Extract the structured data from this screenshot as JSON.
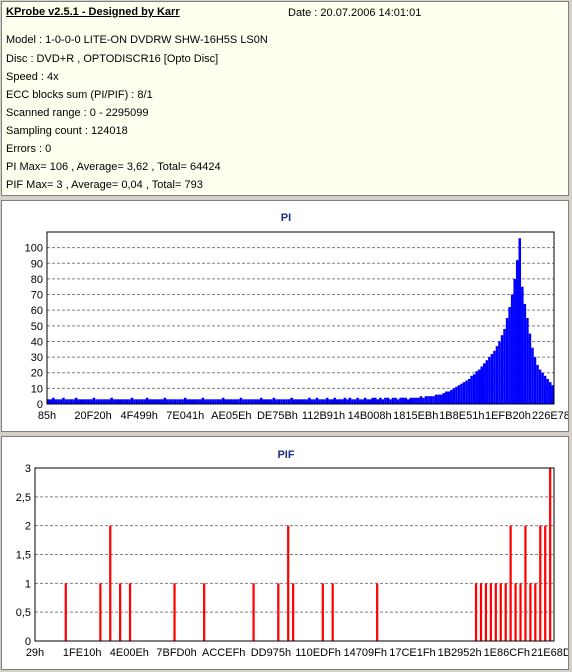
{
  "header": {
    "title": "KProbe v2.5.1 - Designed by Karr",
    "date": "Date : 20.07.2006 14:01:01",
    "lines": [
      "Model : 1-0-0-0 LITE-ON DVDRW SHW-16H5S  LS0N",
      "Disc : DVD+R , OPTODISCR16 [Opto Disc]",
      "Speed : 4x",
      "ECC blocks sum (PI/PIF) : 8/1",
      "Scanned range : 0 - 2295099",
      "Sampling count : 124018",
      "Errors : 0",
      "PI Max= 106 , Average= 3,62 , Total= 64424",
      "PIF Max= 3 , Average= 0,04 , Total= 793"
    ]
  },
  "colors": {
    "pi": "#0000ff",
    "pif": "#ff0000",
    "title": "#1c2f7e"
  },
  "chart_data": [
    {
      "type": "area",
      "title": "PI",
      "ylim": [
        0,
        110
      ],
      "yticks": [
        "0",
        "10",
        "20",
        "30",
        "40",
        "50",
        "60",
        "70",
        "80",
        "90",
        "100"
      ],
      "xticks": [
        "85h",
        "20F20h",
        "4F499h",
        "7E041h",
        "AE05Eh",
        "DE75Bh",
        "112B91h",
        "14B008h",
        "1815EBh",
        "1B8E51h",
        "1EFB20h",
        "226E78h"
      ],
      "series": [
        {
          "values": [
            3,
            3,
            4,
            3,
            3,
            3,
            4,
            3,
            3,
            3,
            3,
            4,
            3,
            3,
            3,
            3,
            3,
            3,
            4,
            3,
            3,
            3,
            3,
            3,
            3,
            4,
            3,
            3,
            3,
            3,
            3,
            3,
            3,
            4,
            3,
            3,
            3,
            3,
            3,
            4,
            3,
            3,
            3,
            3,
            3,
            3,
            4,
            3,
            3,
            3,
            3,
            3,
            3,
            3,
            4,
            3,
            3,
            3,
            3,
            3,
            3,
            4,
            3,
            3,
            3,
            3,
            3,
            3,
            3,
            4,
            3,
            3,
            3,
            3,
            3,
            3,
            4,
            3,
            3,
            3,
            3,
            3,
            3,
            3,
            4,
            3,
            3,
            3,
            3,
            4,
            3,
            3,
            3,
            3,
            3,
            3,
            4,
            3,
            3,
            3,
            3,
            3,
            3,
            4,
            3,
            3,
            4,
            3,
            3,
            3,
            4,
            3,
            3,
            4,
            3,
            3,
            3,
            4,
            3,
            4,
            3,
            3,
            4,
            3,
            3,
            4,
            3,
            3,
            4,
            4,
            3,
            4,
            3,
            4,
            4,
            3,
            4,
            4,
            3,
            4,
            4,
            4,
            3,
            4,
            4,
            4,
            4,
            5,
            4,
            5,
            5,
            5,
            5,
            6,
            6,
            6,
            7,
            8,
            8,
            9,
            10,
            11,
            12,
            13,
            14,
            15,
            16,
            18,
            19,
            21,
            22,
            24,
            26,
            28,
            30,
            32,
            34,
            37,
            40,
            44,
            48,
            55,
            62,
            70,
            80,
            92,
            106,
            75,
            64,
            55,
            45,
            36,
            30,
            25,
            22,
            20,
            18,
            16,
            14,
            12
          ]
        }
      ]
    },
    {
      "type": "bar",
      "title": "PIF",
      "ylim": [
        0,
        3
      ],
      "yticks": [
        "0",
        "0,5",
        "1",
        "1,5",
        "2",
        "2,5",
        "3"
      ],
      "xticks": [
        "29h",
        "1FE10h",
        "4E00Eh",
        "7BFD0h",
        "ACCEFh",
        "DD975h",
        "110EDFh",
        "14709Fh",
        "17CE1Fh",
        "1B2952h",
        "1E86CFh",
        "21E68Dh"
      ],
      "series": [
        {
          "values": [
            0,
            0,
            0,
            0,
            0,
            0,
            1,
            0,
            0,
            0,
            0,
            0,
            0,
            1,
            0,
            2,
            0,
            1,
            0,
            1,
            0,
            0,
            0,
            0,
            0,
            0,
            0,
            0,
            1,
            0,
            0,
            0,
            0,
            0,
            1,
            0,
            0,
            0,
            0,
            0,
            0,
            0,
            0,
            0,
            1,
            0,
            0,
            0,
            0,
            1,
            0,
            2,
            1,
            0,
            0,
            0,
            0,
            0,
            1,
            0,
            1,
            0,
            0,
            0,
            0,
            0,
            0,
            0,
            0,
            1,
            0,
            0,
            0,
            0,
            0,
            0,
            0,
            0,
            0,
            0,
            0,
            0,
            0,
            0,
            0,
            0,
            0,
            0,
            0,
            1,
            1,
            1,
            1,
            1,
            1,
            1,
            2,
            1,
            1,
            2,
            1,
            1,
            2,
            2,
            3
          ]
        }
      ]
    }
  ]
}
